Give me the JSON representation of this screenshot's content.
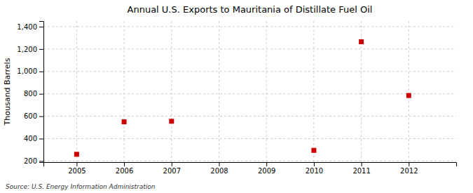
{
  "chart_data": {
    "type": "scatter",
    "title": "Annual U.S. Exports to Mauritania of Distillate Fuel Oil",
    "ylabel": "Thousand Barrels",
    "source": "Source: U.S. Energy Information Administration",
    "x": [
      2005,
      2006,
      2007,
      2010,
      2011,
      2012
    ],
    "values": [
      260,
      550,
      555,
      295,
      1265,
      785
    ],
    "color": "#cc0000",
    "marker": "square",
    "xlim": [
      2004.3,
      2013.0
    ],
    "ylim": [
      190,
      1450
    ],
    "xticks": [
      2005,
      2006,
      2007,
      2008,
      2009,
      2010,
      2011,
      2012
    ],
    "yticks": [
      200,
      400,
      600,
      800,
      {
        "value": 1000,
        "label": "1,000"
      },
      {
        "value": 1200,
        "label": "1,200"
      },
      {
        "value": 1400,
        "label": "1,400"
      }
    ],
    "grid": true
  }
}
